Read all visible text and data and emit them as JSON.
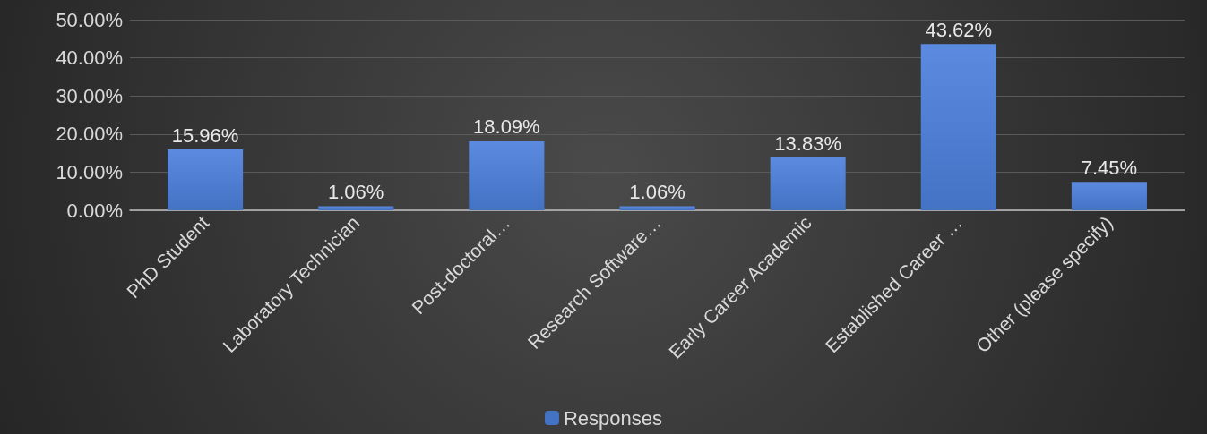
{
  "chart_data": {
    "type": "bar",
    "categories": [
      "PhD Student",
      "Laboratory Technician",
      "Post-doctoral…",
      "Research Software…",
      "Early Career Academic",
      "Established Career …",
      "Other (please specify)"
    ],
    "series": [
      {
        "name": "Responses",
        "color": "#4472c4",
        "values": [
          15.96,
          1.06,
          18.09,
          1.06,
          13.83,
          43.62,
          7.45
        ]
      }
    ],
    "value_labels": [
      "15.96%",
      "1.06%",
      "18.09%",
      "1.06%",
      "13.83%",
      "43.62%",
      "7.45%"
    ],
    "ylim": [
      0,
      50
    ],
    "yticks": [
      {
        "value": 0,
        "label": "0.00%"
      },
      {
        "value": 10,
        "label": "10.00%"
      },
      {
        "value": 20,
        "label": "20.00%"
      },
      {
        "value": 30,
        "label": "30.00%"
      },
      {
        "value": 40,
        "label": "40.00%"
      },
      {
        "value": 50,
        "label": "50.00%"
      }
    ],
    "grid": "y",
    "legend": "bottom"
  }
}
